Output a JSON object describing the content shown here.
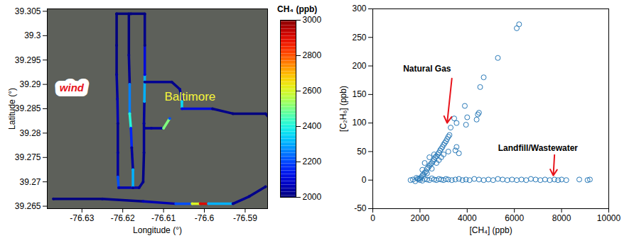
{
  "chart_data": [
    {
      "type": "map",
      "xlabel": "Longitude (°)",
      "ylabel": "Latitude (°)",
      "xlim": [
        -76.6385,
        -76.5845
      ],
      "ylim": [
        39.2645,
        39.3055
      ],
      "xticks": [
        -76.63,
        -76.62,
        -76.61,
        -76.6,
        -76.59
      ],
      "yticks": [
        39.265,
        39.27,
        39.275,
        39.28,
        39.285,
        39.29,
        39.295,
        39.3,
        39.305
      ],
      "tracks": [
        {
          "lon": [
            -76.6215,
            -76.6215,
            -76.6215,
            -76.6213,
            -76.6212,
            -76.6212,
            -76.6212,
            -76.621,
            -76.616,
            -76.615,
            -76.6148,
            -76.6148,
            -76.6147,
            -76.6146,
            -76.6146,
            -76.6146,
            -76.618,
            -76.6215
          ],
          "lat": [
            39.3045,
            39.298,
            39.292,
            39.287,
            39.282,
            39.276,
            39.271,
            39.2688,
            39.2688,
            39.27,
            39.276,
            39.282,
            39.2865,
            39.292,
            39.298,
            39.3045,
            39.3045,
            39.3045
          ],
          "ch4": [
            2000,
            2010,
            2030,
            2050,
            2020,
            2030,
            2200,
            2050,
            2020,
            2010,
            2020,
            2030,
            2300,
            2100,
            2010,
            2000,
            2000,
            2000
          ]
        },
        {
          "lon": [
            -76.6185,
            -76.6185,
            -76.6183,
            -76.6183,
            -76.618,
            -76.6178,
            -76.6175,
            -76.6175
          ],
          "lat": [
            39.3045,
            39.296,
            39.29,
            39.284,
            39.281,
            39.277,
            39.2725,
            39.2688
          ],
          "ch4": [
            2000,
            2020,
            2250,
            2400,
            2150,
            2030,
            2300,
            2020
          ]
        },
        {
          "lon": [
            -76.6146,
            -76.608,
            -76.606,
            -76.6055,
            -76.6055,
            -76.598,
            -76.593,
            -76.585,
            -76.584
          ],
          "lat": [
            39.2905,
            39.2905,
            39.289,
            39.2865,
            39.285,
            39.285,
            39.284,
            39.284,
            39.283
          ],
          "ch4": [
            2020,
            2010,
            2030,
            2350,
            2100,
            2010,
            2000,
            2000,
            2000
          ]
        },
        {
          "lon": [
            -76.637,
            -76.625,
            -76.615,
            -76.607,
            -76.603,
            -76.601,
            -76.599,
            -76.593,
            -76.589,
            -76.585
          ],
          "lat": [
            39.2665,
            39.2665,
            39.266,
            39.2655,
            39.2655,
            39.2655,
            39.2655,
            39.2655,
            39.267,
            39.269
          ],
          "ch4": [
            2000,
            2010,
            2050,
            2200,
            2600,
            2900,
            2300,
            2020,
            2010,
            2000
          ]
        },
        {
          "lon": [
            -76.6147,
            -76.613,
            -76.61,
            -76.6085
          ],
          "lat": [
            39.281,
            39.281,
            39.281,
            39.283
          ],
          "ch4": [
            2030,
            2030,
            2500,
            2200
          ]
        }
      ],
      "colorbar": {
        "label": "CH₄ (ppb)",
        "lim": [
          2000,
          3000
        ],
        "ticks": [
          2000,
          2200,
          2400,
          2600,
          2800,
          3000
        ]
      },
      "annotations": [
        {
          "text": "wind",
          "x": -76.6325,
          "y": 39.2893,
          "color": "#e8141c"
        },
        {
          "text": "Baltimore",
          "x": -76.6035,
          "y": 39.2875,
          "color": "#f5f53a"
        }
      ]
    },
    {
      "type": "scatter",
      "xlabel": "[CH₄] (ppb)",
      "ylabel": "[C₂H₆] (ppb)",
      "xlim": [
        0,
        10000
      ],
      "ylim": [
        -50,
        300
      ],
      "xticks": [
        0,
        2000,
        4000,
        6000,
        8000,
        10000
      ],
      "yticks": [
        -50,
        0,
        50,
        100,
        150,
        200,
        250,
        300
      ],
      "color": "#2a7ab8",
      "marker": "circle",
      "x": [
        2050,
        2100,
        2150,
        2200,
        2250,
        2300,
        2350,
        2400,
        2450,
        2500,
        2550,
        2600,
        2650,
        2700,
        2750,
        2800,
        2850,
        2900,
        2950,
        3000,
        3050,
        3100,
        3150,
        3200,
        3250,
        3300,
        3450,
        3550,
        3500,
        3550,
        3650,
        3900,
        3950,
        4000,
        4400,
        4450,
        4500,
        4550,
        4700,
        5300,
        6100,
        6200,
        2200,
        2400,
        2600,
        2800,
        2500,
        2700,
        3000,
        2900,
        3200,
        2100,
        2300,
        2000,
        1950,
        1600,
        1700,
        1800,
        1850,
        1900,
        2000,
        2100,
        2200,
        2300,
        2400,
        2500,
        2600,
        2700,
        2800,
        2900,
        3000,
        3100,
        3200,
        3350,
        3500,
        3650,
        3800,
        3950,
        4100,
        4300,
        4500,
        4700,
        4900,
        5100,
        5300,
        5500,
        5700,
        5900,
        6100,
        6300,
        6500,
        6700,
        6900,
        7100,
        7300,
        7500,
        7700,
        7850,
        8000,
        8200,
        8750,
        9100,
        9200
      ],
      "values": [
        5,
        8,
        10,
        13,
        15,
        20,
        22,
        25,
        28,
        30,
        33,
        36,
        40,
        42,
        45,
        48,
        52,
        55,
        58,
        62,
        65,
        68,
        72,
        76,
        79,
        92,
        108,
        100,
        52,
        58,
        47,
        130,
        97,
        110,
        106,
        115,
        118,
        163,
        180,
        214,
        266,
        273,
        30,
        40,
        45,
        35,
        20,
        30,
        45,
        40,
        50,
        18,
        12,
        3,
        2,
        0,
        1,
        -2,
        4,
        2,
        0,
        -1,
        2,
        1,
        0,
        3,
        1,
        0,
        2,
        1,
        0,
        2,
        1,
        0,
        1,
        2,
        0,
        1,
        0,
        2,
        1,
        0,
        1,
        0,
        2,
        1,
        0,
        1,
        0,
        1,
        0,
        2,
        1,
        0,
        1,
        0,
        1,
        0,
        1,
        0,
        1,
        0,
        1
      ],
      "annotations": [
        {
          "text": "Natural Gas",
          "x": 2300,
          "y": 195,
          "arrow": [
            [
              3350,
              178
            ],
            [
              3150,
              100
            ]
          ],
          "color": "#e8141c"
        },
        {
          "text": "Landfill/Wastewater",
          "x": 7000,
          "y": 56,
          "arrow": [
            [
              7700,
              44
            ],
            [
              7650,
              8
            ]
          ],
          "color": "#e8141c"
        }
      ]
    }
  ]
}
